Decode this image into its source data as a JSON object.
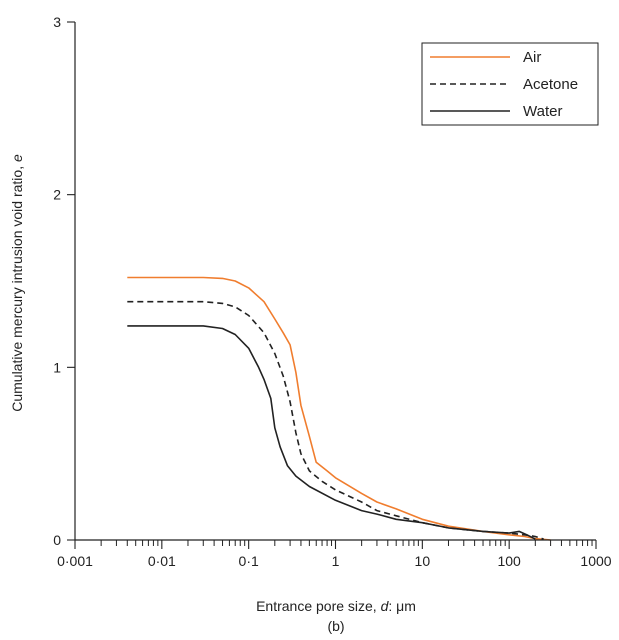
{
  "chart_data": {
    "type": "line",
    "title": "",
    "caption": "(b)",
    "xlabel_prefix": "Entrance pore size, ",
    "xlabel_var": "d",
    "xlabel_suffix": ": μm",
    "ylabel_prefix": "Cumulative mercury intrusion void ratio, ",
    "ylabel_var": "e",
    "x_scale": "log",
    "xlim": [
      0.001,
      1000
    ],
    "ylim": [
      0,
      3
    ],
    "x_ticks": [
      {
        "value": 0.001,
        "label": "0·001"
      },
      {
        "value": 0.01,
        "label": "0·01"
      },
      {
        "value": 0.1,
        "label": "0·1"
      },
      {
        "value": 1,
        "label": "1"
      },
      {
        "value": 10,
        "label": "10"
      },
      {
        "value": 100,
        "label": "100"
      },
      {
        "value": 1000,
        "label": "1000"
      }
    ],
    "y_ticks": [
      {
        "value": 0,
        "label": "0"
      },
      {
        "value": 1,
        "label": "1"
      },
      {
        "value": 2,
        "label": "2"
      },
      {
        "value": 3,
        "label": "3"
      }
    ],
    "grid": false,
    "legend_position": "top-right",
    "series": [
      {
        "name": "Air",
        "color": "#f07d2e",
        "dash": "solid",
        "points": [
          [
            0.004,
            1.52
          ],
          [
            0.01,
            1.52
          ],
          [
            0.03,
            1.52
          ],
          [
            0.05,
            1.515
          ],
          [
            0.07,
            1.5
          ],
          [
            0.1,
            1.46
          ],
          [
            0.15,
            1.38
          ],
          [
            0.2,
            1.28
          ],
          [
            0.25,
            1.2
          ],
          [
            0.3,
            1.13
          ],
          [
            0.35,
            0.97
          ],
          [
            0.4,
            0.78
          ],
          [
            0.5,
            0.6
          ],
          [
            0.6,
            0.45
          ],
          [
            0.8,
            0.4
          ],
          [
            1,
            0.36
          ],
          [
            2,
            0.27
          ],
          [
            3,
            0.22
          ],
          [
            5,
            0.18
          ],
          [
            10,
            0.12
          ],
          [
            20,
            0.08
          ],
          [
            50,
            0.05
          ],
          [
            100,
            0.03
          ],
          [
            150,
            0.02
          ],
          [
            200,
            0.008
          ],
          [
            300,
            0.0
          ]
        ]
      },
      {
        "name": "Acetone",
        "color": "#222222",
        "dash": "dashed",
        "points": [
          [
            0.004,
            1.38
          ],
          [
            0.01,
            1.38
          ],
          [
            0.03,
            1.38
          ],
          [
            0.05,
            1.37
          ],
          [
            0.07,
            1.35
          ],
          [
            0.1,
            1.3
          ],
          [
            0.15,
            1.2
          ],
          [
            0.2,
            1.08
          ],
          [
            0.25,
            0.95
          ],
          [
            0.3,
            0.8
          ],
          [
            0.35,
            0.62
          ],
          [
            0.4,
            0.5
          ],
          [
            0.5,
            0.4
          ],
          [
            0.7,
            0.34
          ],
          [
            1,
            0.29
          ],
          [
            2,
            0.22
          ],
          [
            3,
            0.17
          ],
          [
            5,
            0.14
          ],
          [
            10,
            0.1
          ],
          [
            20,
            0.07
          ],
          [
            50,
            0.05
          ],
          [
            100,
            0.04
          ],
          [
            150,
            0.03
          ],
          [
            200,
            0.02
          ],
          [
            250,
            0.005
          ]
        ]
      },
      {
        "name": "Water",
        "color": "#222222",
        "dash": "solid",
        "points": [
          [
            0.004,
            1.24
          ],
          [
            0.01,
            1.24
          ],
          [
            0.03,
            1.24
          ],
          [
            0.05,
            1.225
          ],
          [
            0.07,
            1.19
          ],
          [
            0.1,
            1.11
          ],
          [
            0.13,
            1.0
          ],
          [
            0.15,
            0.93
          ],
          [
            0.18,
            0.82
          ],
          [
            0.2,
            0.65
          ],
          [
            0.23,
            0.54
          ],
          [
            0.28,
            0.43
          ],
          [
            0.35,
            0.37
          ],
          [
            0.5,
            0.31
          ],
          [
            1,
            0.23
          ],
          [
            2,
            0.17
          ],
          [
            3,
            0.15
          ],
          [
            5,
            0.12
          ],
          [
            10,
            0.1
          ],
          [
            20,
            0.07
          ],
          [
            50,
            0.05
          ],
          [
            100,
            0.04
          ],
          [
            130,
            0.05
          ],
          [
            160,
            0.03
          ],
          [
            200,
            0.005
          ]
        ]
      }
    ]
  }
}
